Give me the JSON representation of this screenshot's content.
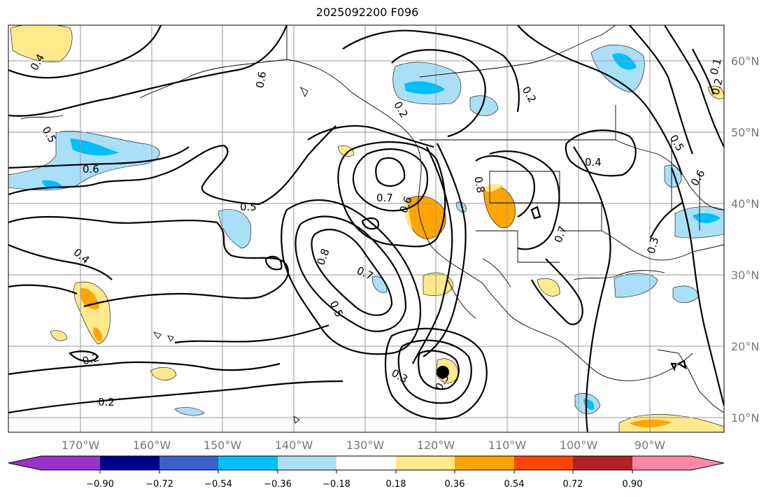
{
  "title": "2025092200 F096",
  "lat_labels": [
    "60°N",
    "50°N",
    "40°N",
    "30°N",
    "20°N",
    "10°N"
  ],
  "lon_labels": [
    "170°W",
    "160°W",
    "150°W",
    "140°W",
    "130°W",
    "120°W",
    "110°W",
    "100°W",
    "90°W"
  ],
  "contour_labels": [
    "0.4",
    "0.5",
    "0.6",
    "0.5",
    "0.4",
    "0.2",
    "0.2",
    "0.6",
    "0.2",
    "0.2",
    "0.4",
    "0.7",
    "0.6",
    "0.8",
    "0.7",
    "0.5",
    "0.3",
    "0.5",
    "0.8",
    "0.7",
    "0.3",
    "0.6",
    "0.5",
    "0.1",
    "0.2"
  ],
  "colorbar": {
    "tick_labels": [
      "−0.90",
      "−0.72",
      "−0.54",
      "−0.36",
      "−0.18",
      "0.18",
      "0.36",
      "0.54",
      "0.72",
      "0.90"
    ],
    "colors": [
      "#9933cc",
      "#00008b",
      "#3a5fcd",
      "#00bfff",
      "#aadff8",
      "#ffffff",
      "#ffe98a",
      "#ffa500",
      "#ff4500",
      "#b22222",
      "#ff88aa"
    ]
  },
  "shading_colors": {
    "light_blue": "#aadff8",
    "blue": "#00bfff",
    "light_yellow": "#ffe98a",
    "orange": "#ffa500"
  },
  "icons": [
    "tropical-cyclone-marker"
  ]
}
